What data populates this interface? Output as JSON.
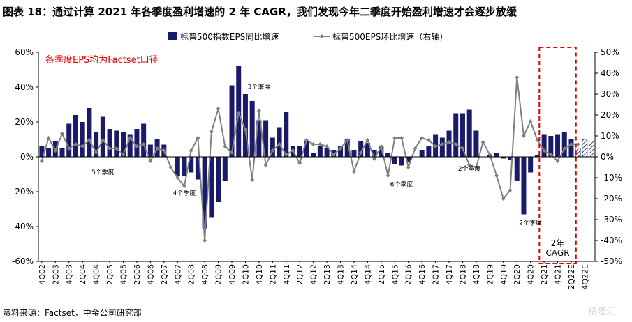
{
  "chart_data": {
    "type": "bar",
    "title": "图表 18：通过计算 2021 年各季度盈利增速的 2 年 CAGR，我们发现今年二季度开始盈利增速才会逐步放缓",
    "source": "资料来源：Factset，中金公司研究部",
    "watermark": "格隆汇",
    "note_text": "各季度EPS均为Factset口径",
    "colors": {
      "bar": "#1a1a6b",
      "line": "#808080",
      "note": "#e00000",
      "box": "#e00000"
    },
    "y_left": {
      "lim": [
        -60,
        60
      ],
      "ticks": [
        "60%",
        "40%",
        "20%",
        "0%",
        "-20%",
        "-40%",
        "-60%"
      ]
    },
    "y_right": {
      "lim": [
        -50,
        50
      ],
      "ticks": [
        "50%",
        "40%",
        "30%",
        "20%",
        "10%",
        "0%",
        "-10%",
        "-20%",
        "-30%",
        "-40%",
        "-50%"
      ]
    },
    "x_tick_labels": [
      "4Q02",
      "2Q03",
      "4Q03",
      "2Q04",
      "4Q04",
      "2Q05",
      "4Q05",
      "2Q06",
      "4Q06",
      "2Q07",
      "4Q07",
      "2Q08",
      "4Q08",
      "2Q09",
      "4Q09",
      "2Q10",
      "4Q10",
      "2Q11",
      "4Q11",
      "2Q12",
      "4Q12",
      "2Q13",
      "4Q13",
      "2Q14",
      "4Q14",
      "2Q15",
      "4Q15",
      "2Q16",
      "4Q16",
      "2Q17",
      "4Q17",
      "2Q18",
      "4Q18",
      "2Q19",
      "4Q19",
      "2Q20",
      "4Q20",
      "2Q21",
      "4Q21",
      "2Q22E",
      "4Q22E"
    ],
    "legend_position": "top",
    "series": [
      {
        "name": "标普500指数EPS同比增速",
        "axis": "left",
        "kind": "bar",
        "values": [
          6,
          5,
          9,
          5,
          19,
          24,
          20,
          28,
          14,
          23,
          16,
          15,
          14,
          13,
          16,
          19,
          7,
          10,
          7,
          0,
          -11,
          -11,
          -9,
          -13,
          -41,
          -35,
          -26,
          -14,
          41,
          52,
          36,
          32,
          21,
          21,
          11,
          17,
          26,
          6,
          6,
          9,
          2,
          6,
          5,
          4,
          6,
          10,
          4,
          9,
          8,
          4,
          6,
          2,
          -4,
          -5,
          -3,
          0,
          4,
          6,
          13,
          11,
          15,
          25,
          25,
          27,
          15,
          0,
          1,
          2,
          -1,
          -2,
          -14,
          -33,
          -9,
          1,
          13,
          12,
          13,
          14,
          10
        ],
        "forecast_values": [
          5,
          10,
          9
        ]
      },
      {
        "name": "标普500EPS环比增速（右轴）",
        "axis": "right",
        "kind": "line",
        "values": [
          -2,
          9,
          3,
          11,
          4,
          6,
          5,
          8,
          2,
          8,
          4,
          4,
          1,
          9,
          5,
          6,
          -2,
          4,
          3,
          -5,
          -10,
          -14,
          3,
          9,
          -40,
          12,
          23,
          5,
          2,
          21,
          13,
          -11,
          22,
          -4,
          3,
          6,
          1,
          3,
          -3,
          8,
          6,
          6,
          5,
          1,
          4,
          8,
          -7,
          2,
          8,
          -1,
          5,
          -9,
          9,
          9,
          -5,
          4,
          9,
          8,
          5,
          6,
          7,
          6,
          4,
          -4,
          -5,
          7,
          1,
          -9,
          -20,
          -16,
          38,
          10,
          17,
          8,
          3,
          1,
          -2
        ],
        "forecast_values": [
          4,
          6,
          6
        ]
      }
    ],
    "annotations": [
      {
        "text": "5个季度",
        "at_index": 9,
        "value": -10,
        "axis": "left"
      },
      {
        "text": "4个季度",
        "at_index": 21,
        "value": -22,
        "axis": "left"
      },
      {
        "text": "3个季度",
        "at_index": 32,
        "value": 39,
        "axis": "left"
      },
      {
        "text": "6个季度",
        "at_index": 53,
        "value": -17,
        "axis": "left"
      },
      {
        "text": "2个季度",
        "at_index": 63,
        "value": -8,
        "axis": "left"
      },
      {
        "text": "2个季度",
        "at_index": 72,
        "value": -39,
        "axis": "left"
      }
    ],
    "highlight_box": {
      "from_index": 74,
      "to_index": 78,
      "label_lines": [
        "2年",
        "CAGR"
      ]
    }
  }
}
